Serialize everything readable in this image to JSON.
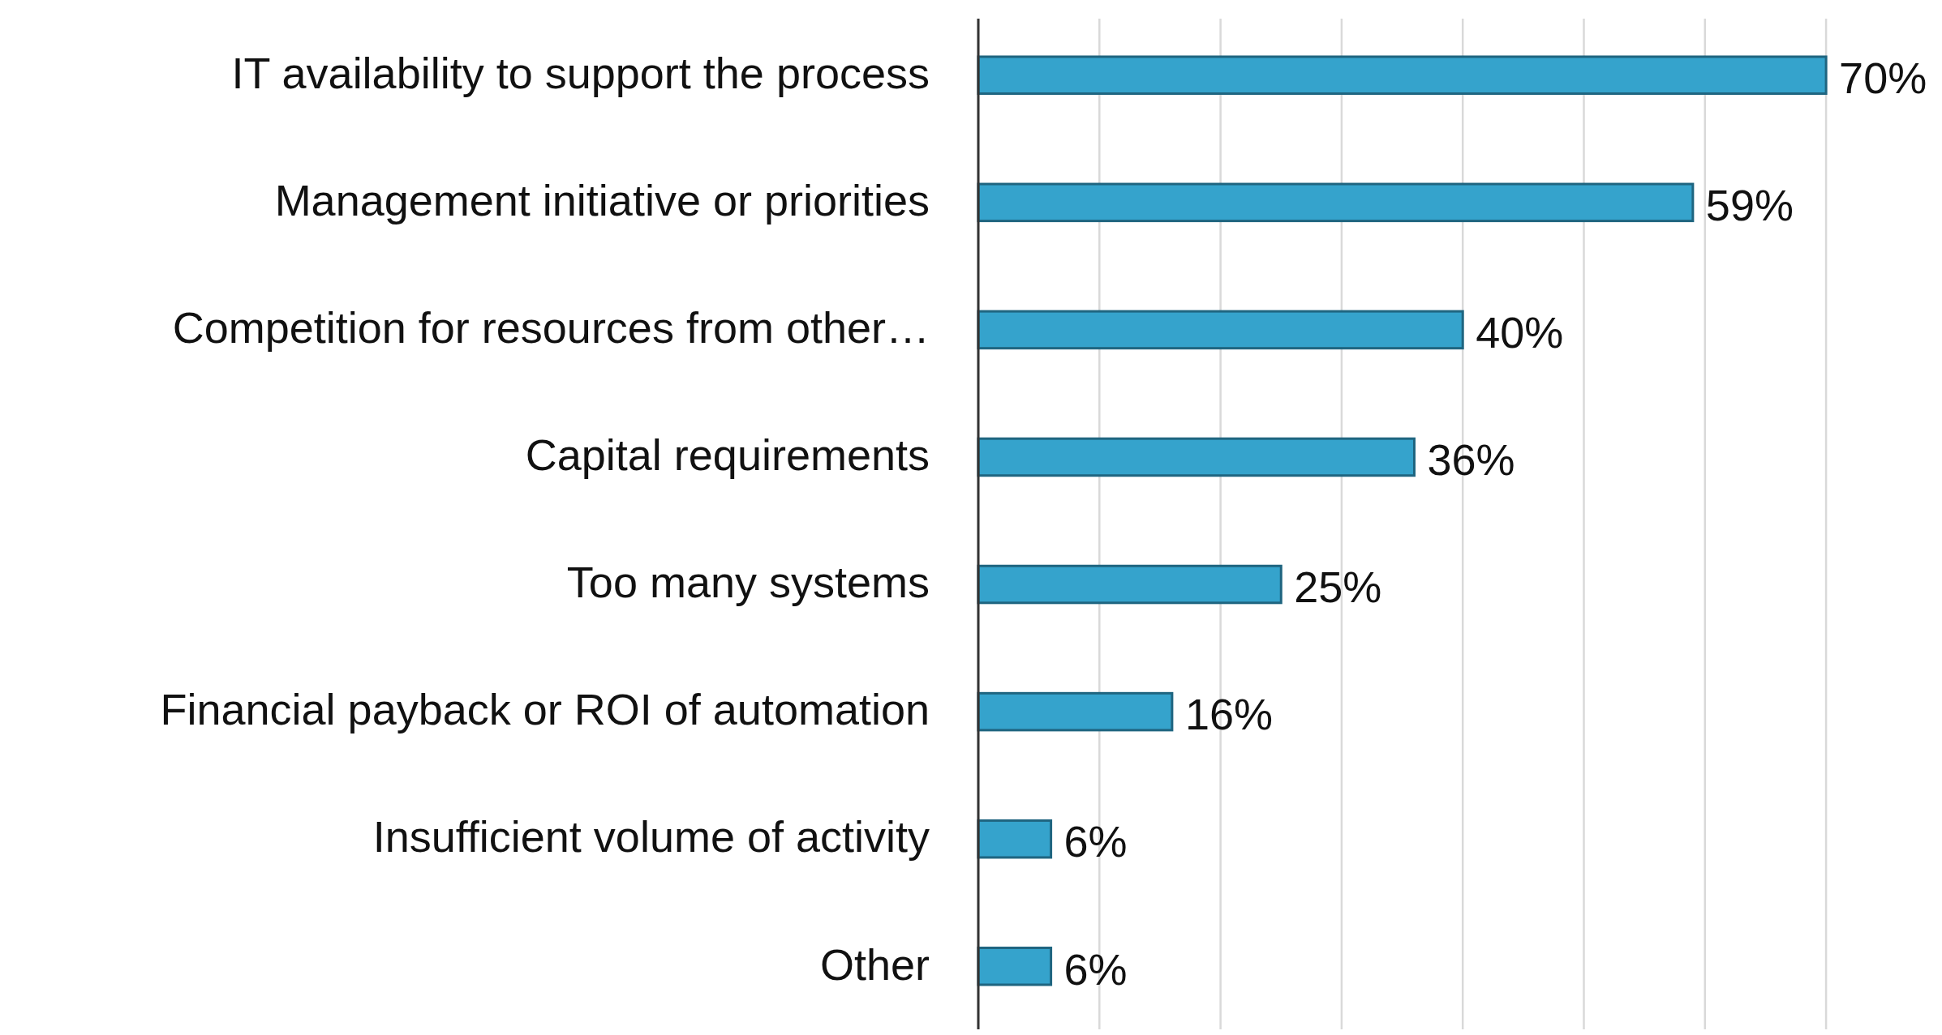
{
  "chart_data": {
    "type": "bar",
    "orientation": "horizontal",
    "categories": [
      "IT availability to support the process",
      "Management initiative or priorities",
      "Competition for resources from other…",
      "Capital requirements",
      "Too many systems",
      "Financial payback or ROI of automation",
      "Insufficient volume of activity",
      "Other"
    ],
    "values": [
      70,
      59,
      40,
      36,
      25,
      16,
      6,
      6
    ],
    "color": "#35a3cc",
    "value_labels": [
      "70%",
      "59%",
      "40%",
      "36%",
      "25%",
      "16%",
      "6%",
      "6%"
    ],
    "xticks": [
      {
        "value": 0,
        "label": null
      },
      {
        "value": 10,
        "label": null
      },
      {
        "value": 20,
        "label": null
      },
      {
        "value": 30,
        "label": null
      },
      {
        "value": 40,
        "label": null
      },
      {
        "value": 50,
        "label": null
      },
      {
        "value": 60,
        "label": null
      },
      {
        "value": 70,
        "label": null
      }
    ],
    "grid": "x",
    "tick_labels": "y"
  }
}
